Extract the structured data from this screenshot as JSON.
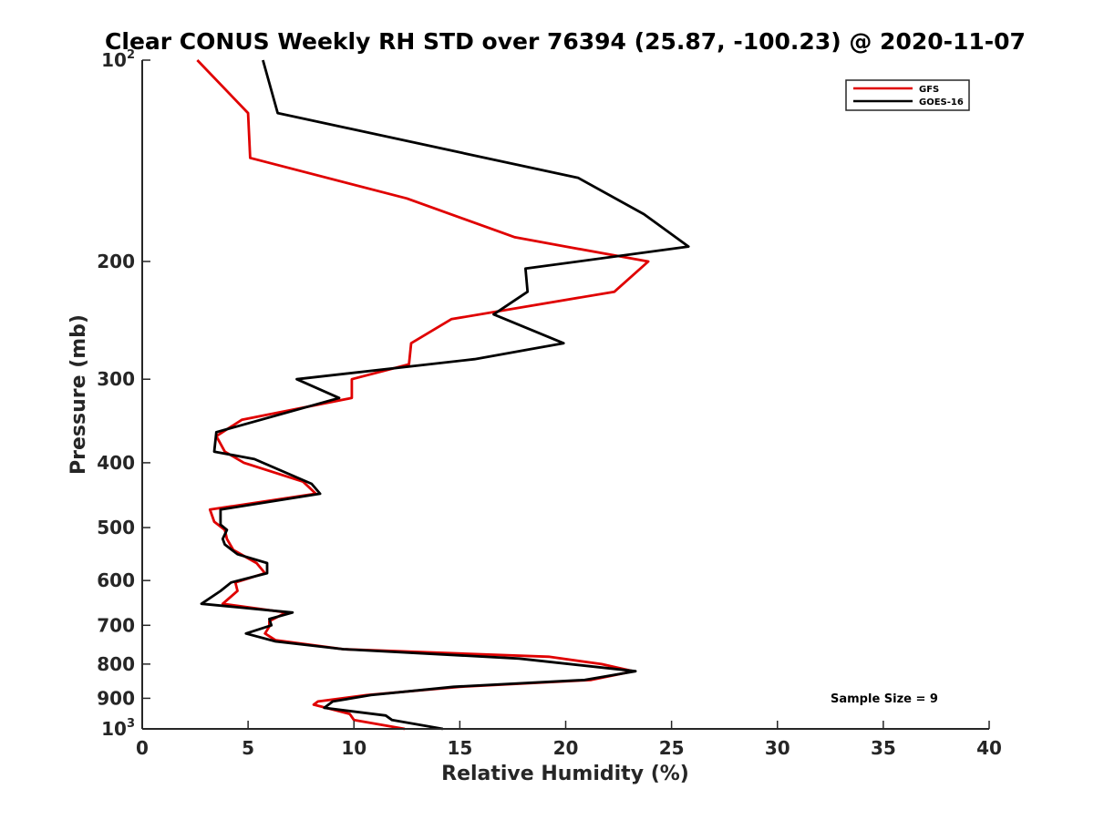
{
  "chart_data": {
    "type": "line",
    "title": "Clear CONUS Weekly RH STD over 76394 (25.87, -100.23) @ 2020-11-07",
    "xlabel": "Relative Humidity (%)",
    "ylabel": "Pressure (mb)",
    "xlim": [
      0,
      40
    ],
    "ylim": [
      100,
      1000
    ],
    "yscale": "log",
    "y_reversed": true,
    "x_ticks": [
      0,
      5,
      10,
      15,
      20,
      25,
      30,
      35,
      40
    ],
    "x_tick_labels": [
      "0",
      "5",
      "10",
      "15",
      "20",
      "25",
      "30",
      "35",
      "40"
    ],
    "y_ticks": [
      100,
      200,
      300,
      400,
      500,
      600,
      700,
      800,
      900,
      1000
    ],
    "y_tick_labels": [
      {
        "base": "10",
        "exp": "2"
      },
      {
        "base": "200",
        "exp": ""
      },
      {
        "base": "300",
        "exp": ""
      },
      {
        "base": "400",
        "exp": ""
      },
      {
        "base": "500",
        "exp": ""
      },
      {
        "base": "600",
        "exp": ""
      },
      {
        "base": "700",
        "exp": ""
      },
      {
        "base": "800",
        "exp": ""
      },
      {
        "base": "900",
        "exp": ""
      },
      {
        "base": "10",
        "exp": "3"
      }
    ],
    "grid": false,
    "legend_position": "top-right",
    "annotation": "Sample Size = 9",
    "series": [
      {
        "name": "GFS",
        "color": "#e00000",
        "points": [
          [
            2.6,
            100
          ],
          [
            5.0,
            120
          ],
          [
            5.1,
            140
          ],
          [
            12.5,
            161
          ],
          [
            17.6,
            184
          ],
          [
            20.0,
            190
          ],
          [
            23.9,
            200
          ],
          [
            22.3,
            222
          ],
          [
            14.6,
            244
          ],
          [
            12.7,
            265
          ],
          [
            12.6,
            285
          ],
          [
            9.9,
            300
          ],
          [
            9.9,
            320
          ],
          [
            4.7,
            345
          ],
          [
            3.5,
            365
          ],
          [
            3.9,
            385
          ],
          [
            4.8,
            400
          ],
          [
            7.6,
            427
          ],
          [
            8.2,
            445
          ],
          [
            3.2,
            470
          ],
          [
            3.4,
            490
          ],
          [
            3.9,
            504
          ],
          [
            4.0,
            520
          ],
          [
            4.3,
            540
          ],
          [
            5.4,
            565
          ],
          [
            5.8,
            585
          ],
          [
            4.4,
            604
          ],
          [
            4.5,
            622
          ],
          [
            3.8,
            650
          ],
          [
            6.8,
            670
          ],
          [
            6.0,
            690
          ],
          [
            6.0,
            703
          ],
          [
            5.8,
            720
          ],
          [
            6.3,
            737
          ],
          [
            9.5,
            760
          ],
          [
            19.2,
            780
          ],
          [
            21.7,
            800
          ],
          [
            23.2,
            820
          ],
          [
            21.2,
            845
          ],
          [
            15.0,
            865
          ],
          [
            10.6,
            890
          ],
          [
            8.3,
            910
          ],
          [
            8.1,
            920
          ],
          [
            9.8,
            950
          ],
          [
            10.0,
            970
          ],
          [
            12.4,
            1000
          ]
        ]
      },
      {
        "name": "GOES-16",
        "color": "#000000",
        "points": [
          [
            5.7,
            100
          ],
          [
            6.4,
            120
          ],
          [
            20.6,
            150
          ],
          [
            23.7,
            170
          ],
          [
            25.8,
            190
          ],
          [
            18.1,
            205
          ],
          [
            18.2,
            222
          ],
          [
            16.6,
            240
          ],
          [
            19.9,
            265
          ],
          [
            15.7,
            280
          ],
          [
            7.3,
            300
          ],
          [
            9.3,
            320
          ],
          [
            3.5,
            360
          ],
          [
            3.4,
            385
          ],
          [
            5.3,
            395
          ],
          [
            8.0,
            430
          ],
          [
            8.4,
            445
          ],
          [
            3.7,
            470
          ],
          [
            3.7,
            495
          ],
          [
            4.0,
            504
          ],
          [
            3.8,
            520
          ],
          [
            3.9,
            530
          ],
          [
            4.5,
            548
          ],
          [
            5.9,
            565
          ],
          [
            5.9,
            585
          ],
          [
            4.2,
            604
          ],
          [
            3.7,
            622
          ],
          [
            2.8,
            650
          ],
          [
            7.1,
            670
          ],
          [
            6.0,
            685
          ],
          [
            6.1,
            700
          ],
          [
            4.9,
            720
          ],
          [
            6.3,
            740
          ],
          [
            9.5,
            760
          ],
          [
            17.8,
            785
          ],
          [
            23.3,
            820
          ],
          [
            20.9,
            845
          ],
          [
            14.7,
            865
          ],
          [
            10.8,
            890
          ],
          [
            9.0,
            910
          ],
          [
            8.6,
            930
          ],
          [
            11.5,
            955
          ],
          [
            11.8,
            970
          ],
          [
            14.2,
            1000
          ]
        ]
      }
    ]
  }
}
